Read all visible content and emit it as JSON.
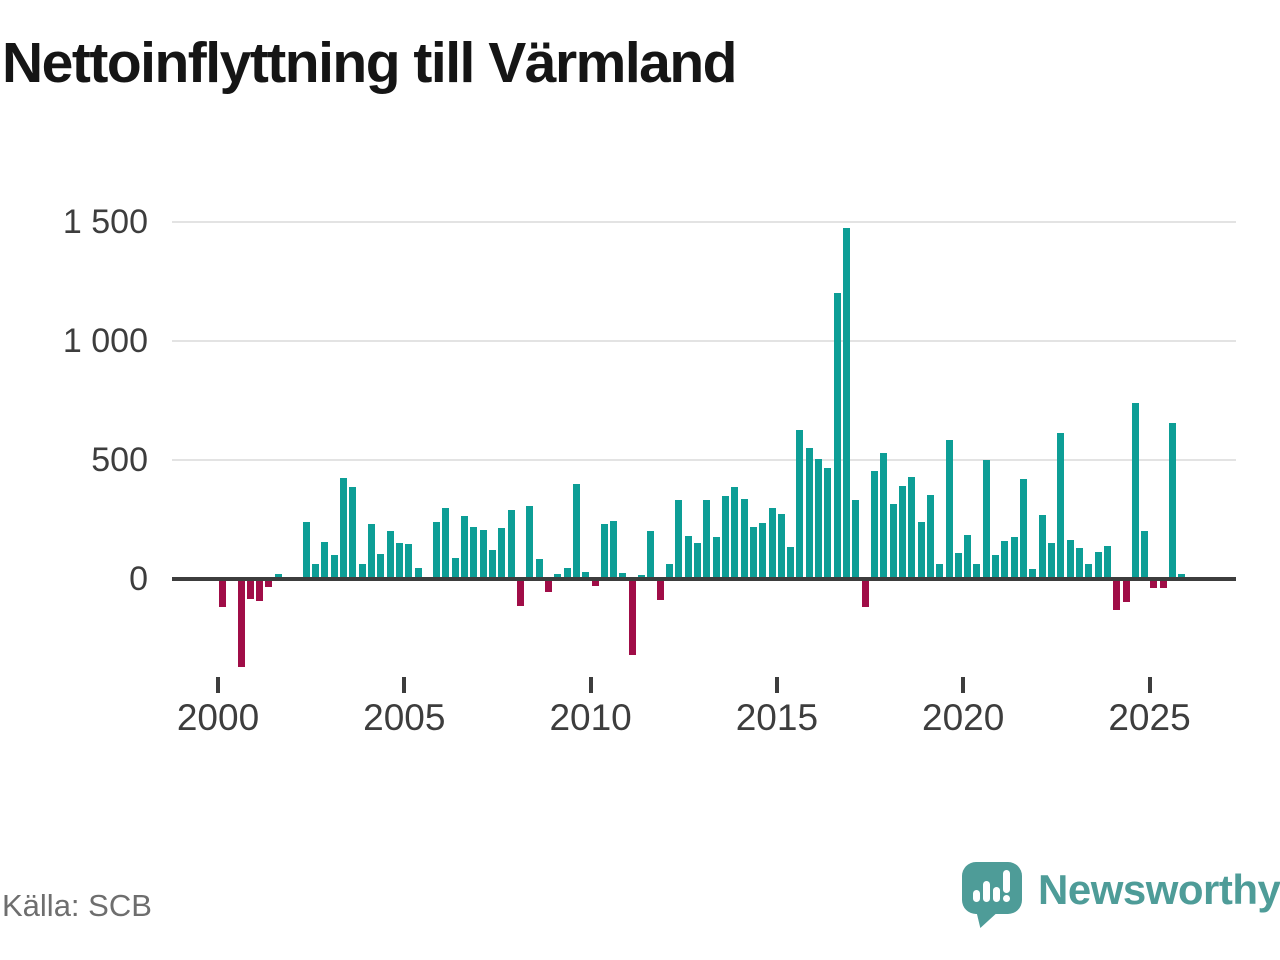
{
  "title": "Nettoinflyttning till Värmland",
  "source": "Källa: SCB",
  "brand": {
    "name": "Newsworthy",
    "color": "#4e9c98",
    "icon": "bar-chart-speech-bubble-icon"
  },
  "colors": {
    "positive": "#0d9e96",
    "negative": "#a00d47",
    "axis": "#3d3d3d",
    "grid": "#e3e3e3",
    "label": "#3d3d3d",
    "muted": "#6e6e6e"
  },
  "chart_data": {
    "type": "bar",
    "title": "Nettoinflyttning till Värmland",
    "frequency": "quarterly",
    "x_start": {
      "year": 2000,
      "quarter": 1
    },
    "x_end": {
      "year": 2025,
      "quarter": 4
    },
    "grid": true,
    "ylim": [
      -430,
      1560
    ],
    "y_ticks": [
      {
        "label": "0",
        "value": 0
      },
      {
        "label": "500",
        "value": 500
      },
      {
        "label": "1 000",
        "value": 1000
      },
      {
        "label": "1 500",
        "value": 1500
      }
    ],
    "x_ticks": [
      {
        "label": "2000",
        "year": 2000
      },
      {
        "label": "2005",
        "year": 2005
      },
      {
        "label": "2010",
        "year": 2010
      },
      {
        "label": "2015",
        "year": 2015
      },
      {
        "label": "2020",
        "year": 2020
      },
      {
        "label": "2025",
        "year": 2025
      }
    ],
    "series": [
      {
        "name": "Nettoinflyttning",
        "values": [
          -110,
          0,
          -360,
          -75,
          -85,
          -25,
          20,
          0,
          0,
          240,
          65,
          155,
          100,
          425,
          385,
          65,
          230,
          105,
          200,
          150,
          145,
          45,
          10,
          240,
          300,
          90,
          265,
          220,
          205,
          120,
          215,
          290,
          -105,
          305,
          85,
          -45,
          20,
          45,
          400,
          30,
          -20,
          230,
          245,
          25,
          -310,
          15,
          200,
          -80,
          65,
          330,
          180,
          150,
          330,
          175,
          350,
          385,
          335,
          220,
          235,
          300,
          275,
          135,
          625,
          550,
          505,
          465,
          1200,
          1475,
          330,
          -110,
          455,
          530,
          315,
          390,
          430,
          240,
          355,
          65,
          585,
          110,
          185,
          65,
          500,
          100,
          160,
          175,
          420,
          40,
          270,
          150,
          615,
          165,
          130,
          65,
          115,
          140,
          -120,
          -90,
          740,
          200,
          -30,
          -30,
          655,
          20
        ]
      }
    ]
  }
}
